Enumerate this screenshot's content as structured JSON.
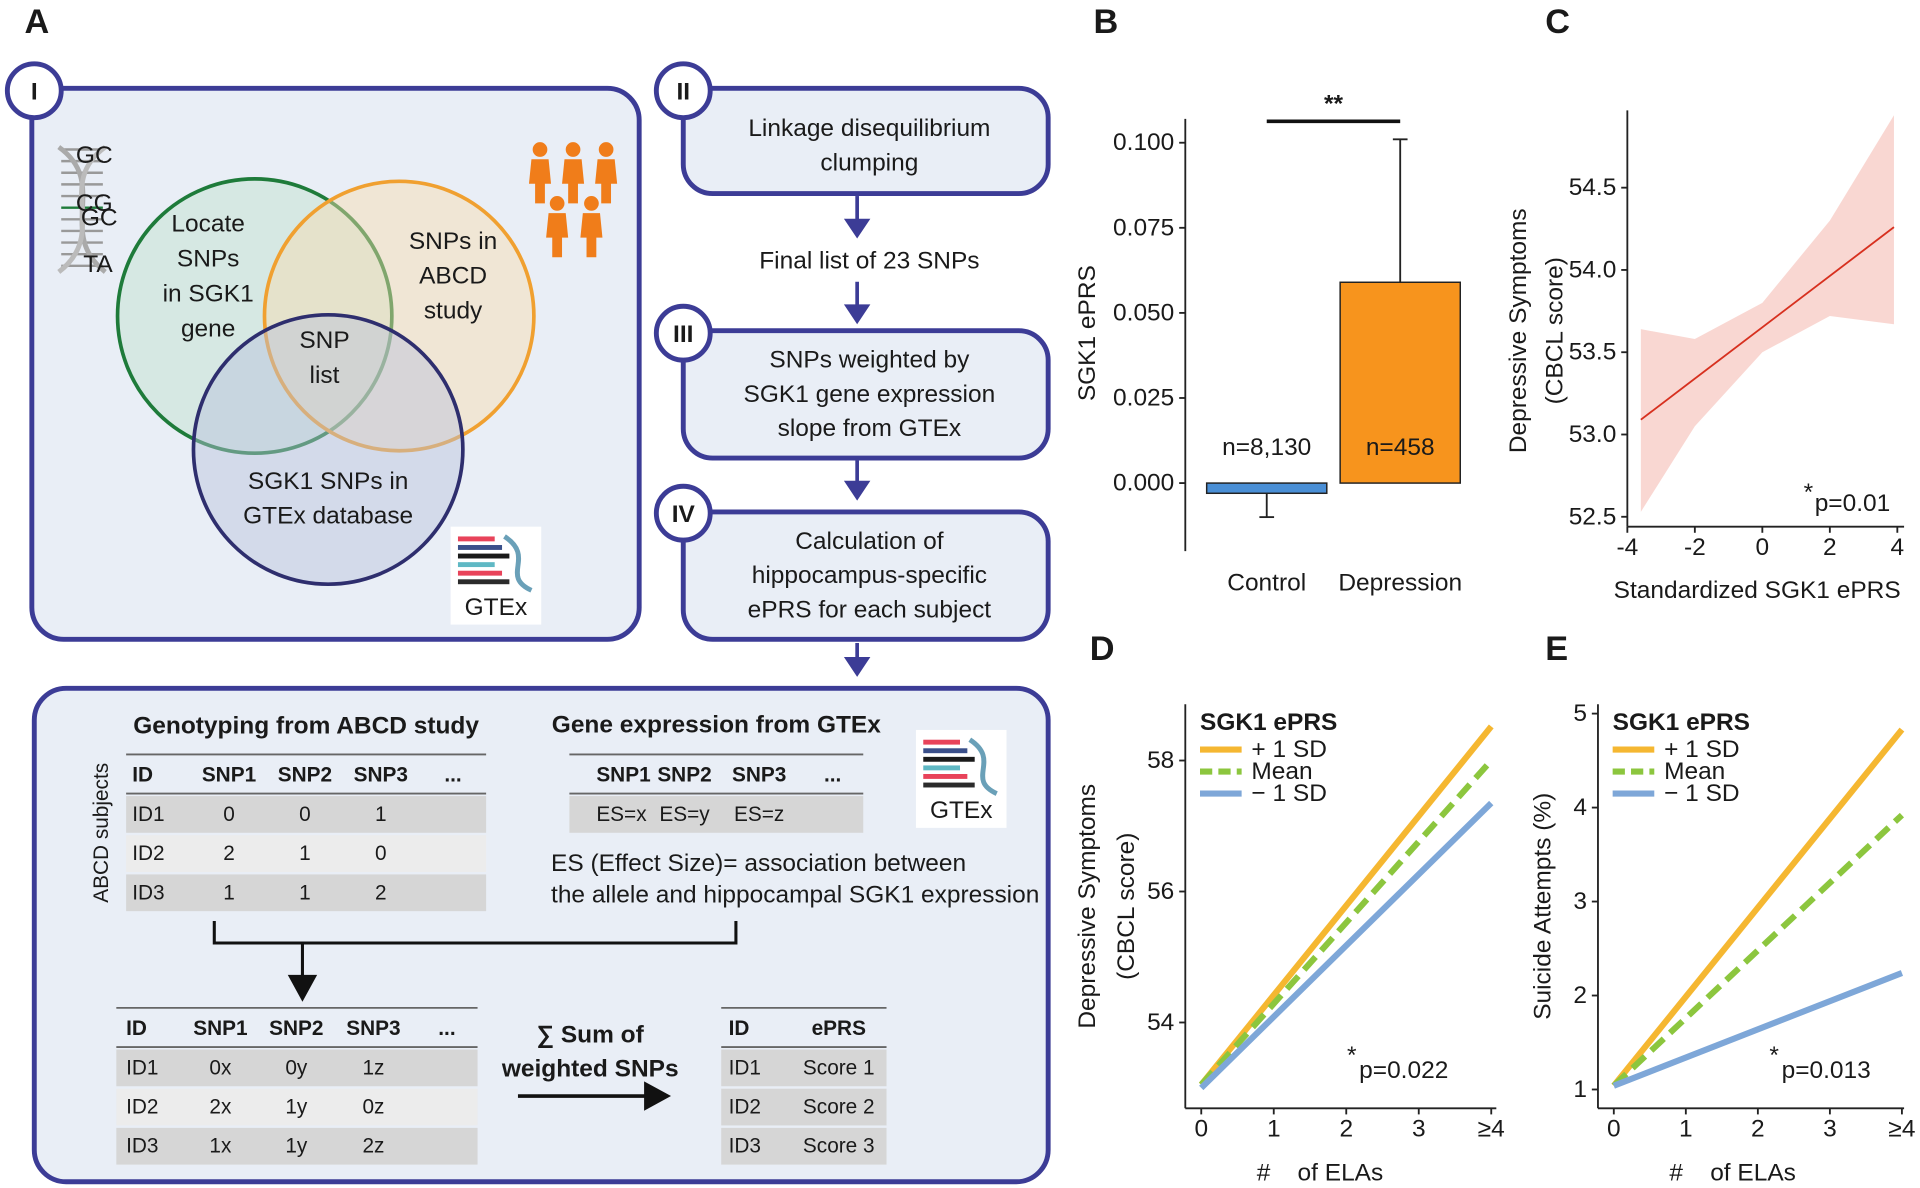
{
  "panel_a": {
    "label": "A",
    "steps": [
      "I",
      "II",
      "III",
      "IV"
    ],
    "dna_labels": [
      "GC",
      "CG",
      "GC",
      "TA"
    ],
    "venn": [
      [
        "Locate",
        "SNPs",
        "in SGK1",
        "gene"
      ],
      [
        "SNPs in",
        "ABCD",
        "study"
      ],
      [
        "SNP",
        "list"
      ],
      [
        "SGK1 SNPs in",
        "GTEx database"
      ]
    ],
    "logo": "GTEx",
    "boxes": [
      [
        "Linkage disequilibrium",
        "clumping"
      ],
      [
        "SNPs weighted by",
        "SGK1 gene expression",
        "slope from GTEx"
      ],
      [
        "Calculation of",
        "hippocampus-specific",
        "ePRS for each subject"
      ]
    ],
    "final_list": "Final list of 23 SNPs",
    "genotyping_title": "Genotyping from ABCD study",
    "expression_title": "Gene expression from GTEx",
    "subjects_label": "ABCD subjects",
    "note": [
      "ES (Effect Size)= association between",
      "the allele and hippocampal SGK1 expression"
    ],
    "sum_label": [
      "∑ Sum of",
      "weighted SNPs"
    ],
    "tables": [
      {
        "header": [
          "ID",
          "SNP1",
          "SNP2",
          "SNP3",
          "..."
        ],
        "rows": [
          [
            "ID1",
            0,
            0,
            1
          ],
          [
            "ID2",
            2,
            1,
            0
          ],
          [
            "ID3",
            1,
            1,
            2
          ]
        ]
      },
      {
        "header": [
          "SNP1",
          "SNP2",
          "SNP3",
          "..."
        ],
        "rows": [
          [
            "ES=x",
            "ES=y",
            "ES=z"
          ]
        ]
      },
      {
        "header": [
          "ID",
          "SNP1",
          "SNP2",
          "SNP3",
          "..."
        ],
        "rows": [
          [
            "ID1",
            "0x",
            "0y",
            "1z"
          ],
          [
            "ID2",
            "2x",
            "1y",
            "0z"
          ],
          [
            "ID3",
            "1x",
            "1y",
            "2z"
          ]
        ]
      },
      {
        "header": [
          "ID",
          "ePRS"
        ],
        "rows": [
          [
            "ID1",
            "Score 1"
          ],
          [
            "ID2",
            "Score 2"
          ],
          [
            "ID3",
            "Score 3"
          ]
        ]
      }
    ]
  },
  "chart_data": [
    {
      "panel": "B",
      "type": "bar",
      "ylabel": "SGK1 ePRS",
      "categories": [
        "Control",
        "Depression"
      ],
      "values": [
        -0.003,
        0.059
      ],
      "errors": [
        0.007,
        0.042
      ],
      "colors": [
        "#4a8fd6",
        "#f7941d"
      ],
      "annotations": [
        "n=8,130",
        "n=458"
      ],
      "significance": "**",
      "ylim": [
        -0.02,
        0.107
      ],
      "yticks": [
        {
          "value": 0,
          "label": "0.000"
        },
        {
          "value": 0.025,
          "label": "0.025"
        },
        {
          "value": 0.05,
          "label": "0.050"
        },
        {
          "value": 0.075,
          "label": "0.075"
        },
        {
          "value": 0.1,
          "label": "0.100"
        }
      ]
    },
    {
      "panel": "C",
      "type": "line",
      "xlabel": "Standardized SGK1 ePRS",
      "ylabel": [
        "Depressive Symptoms",
        "(CBCL score)"
      ],
      "x": [
        -3.6,
        3.9
      ],
      "series": [
        {
          "color": "#d7301f",
          "values": [
            53.09,
            54.26
          ]
        }
      ],
      "band": {
        "color": "#f7cdc7",
        "x": [
          -3.6,
          -2,
          0,
          2,
          3.9
        ],
        "lower": [
          52.53,
          53.05,
          53.5,
          53.72,
          53.67
        ],
        "upper": [
          53.64,
          53.58,
          53.8,
          54.3,
          54.94
        ]
      },
      "annotation": {
        "mark": "*",
        "text": "p=0.01"
      },
      "xlim": [
        -4,
        4.2
      ],
      "ylim": [
        52.44,
        54.97
      ],
      "xticks": [
        -4,
        -2,
        0,
        2,
        4
      ],
      "yticks": [
        52.5,
        {
          "value": 53,
          "label": "53.0"
        },
        53.5,
        {
          "value": 54,
          "label": "54.0"
        },
        54.5
      ]
    },
    {
      "panel": "D",
      "type": "line",
      "xlabel": "#    of ELAs",
      "ylabel": [
        "Depressive Symptoms",
        "(CBCL score)"
      ],
      "legend_title": "SGK1 ePRS",
      "legend": "top-left",
      "x": [
        0,
        4
      ],
      "series": [
        {
          "name": "+ 1 SD",
          "color": "#f5b731",
          "values": [
            53.05,
            58.52
          ]
        },
        {
          "name": "Mean",
          "color": "#8cc63e",
          "dashed": true,
          "values": [
            53.05,
            58.0
          ]
        },
        {
          "name": "− 1 SD",
          "color": "#7ea7d8",
          "values": [
            53.0,
            57.35
          ]
        }
      ],
      "annotation": {
        "mark": "*",
        "text": "p=0.022"
      },
      "xlim": [
        -0.22,
        4.07
      ],
      "ylim": [
        52.69,
        58.86
      ],
      "xticks": [
        0,
        1,
        2,
        3,
        {
          "value": 4,
          "label": "≥4"
        }
      ],
      "yticks": [
        54,
        56,
        58
      ]
    },
    {
      "panel": "E",
      "type": "line",
      "xlabel": "#    of ELAs",
      "ylabel": [
        "Suicide Attempts (%)"
      ],
      "legend_title": "SGK1 ePRS",
      "legend": "top-left",
      "x": [
        0,
        4
      ],
      "series": [
        {
          "name": "+ 1 SD",
          "color": "#f5b731",
          "values": [
            1.04,
            4.83
          ]
        },
        {
          "name": "Mean",
          "color": "#8cc63e",
          "dashed": true,
          "values": [
            1.04,
            3.92
          ]
        },
        {
          "name": "− 1 SD",
          "color": "#7ea7d8",
          "values": [
            1.04,
            2.24
          ]
        }
      ],
      "annotation": {
        "mark": "*",
        "text": "p=0.013"
      },
      "xlim": [
        -0.22,
        4.03
      ],
      "ylim": [
        0.8,
        5.1
      ],
      "xticks": [
        0,
        1,
        2,
        3,
        {
          "value": 4,
          "label": "≥4"
        }
      ],
      "yticks": [
        1,
        2,
        3,
        4,
        5
      ]
    }
  ]
}
